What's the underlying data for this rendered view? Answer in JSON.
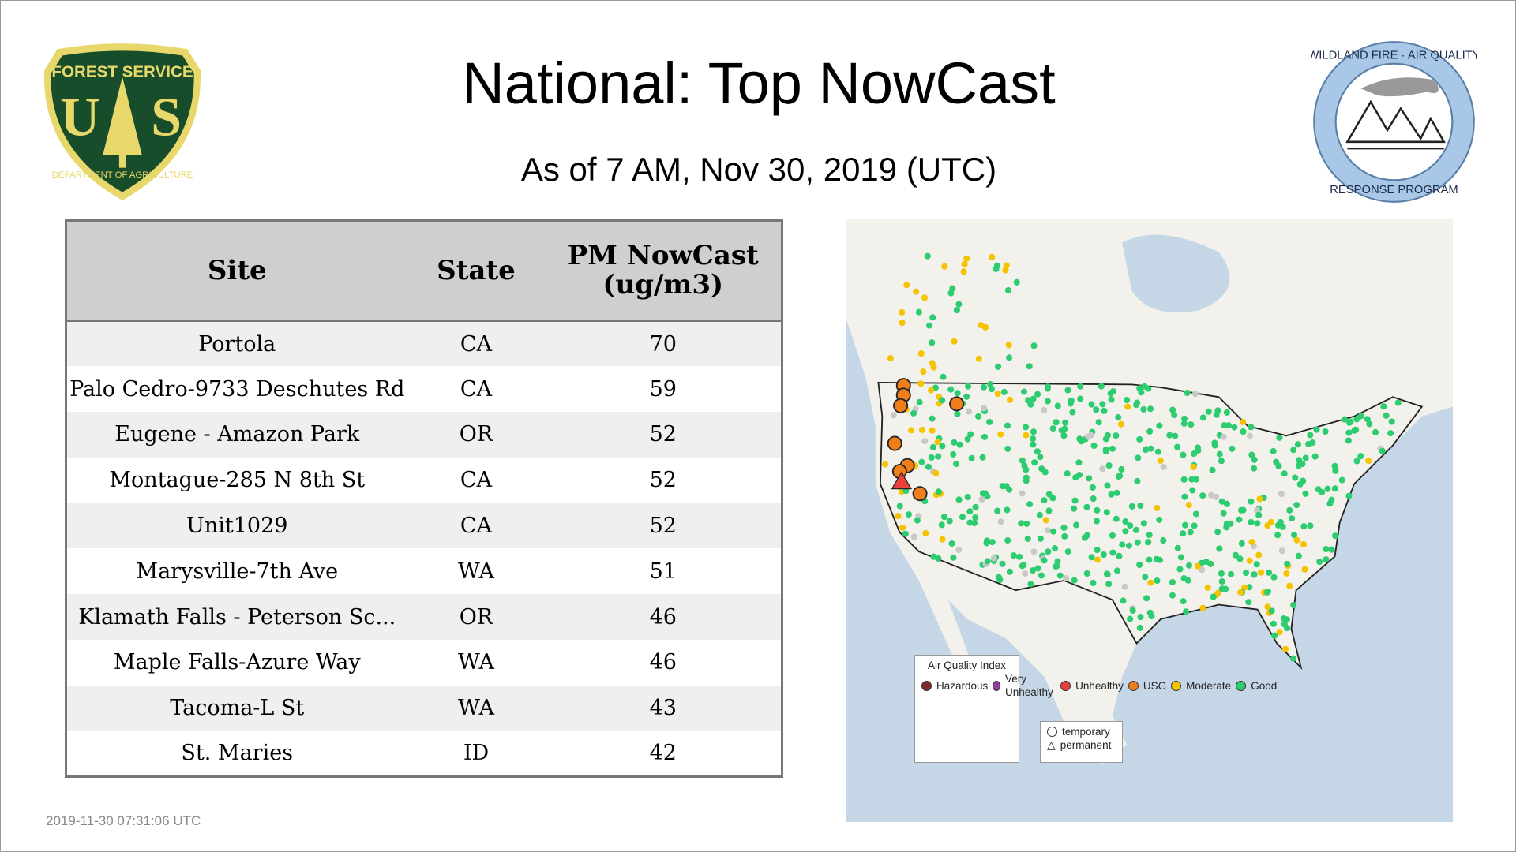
{
  "header": {
    "title": "National: Top NowCast",
    "subtitle": "As of  7 AM, Nov 30, 2019 (UTC)"
  },
  "logos": {
    "left": "FOREST SERVICE U S DEPARTMENT OF AGRICULTURE",
    "right": "WILDLAND FIRE AIR QUALITY RESPONSE PROGRAM"
  },
  "table": {
    "columns": [
      "Site",
      "State",
      "PM NowCast (ug/m3)"
    ],
    "rows": [
      [
        "Portola",
        "CA",
        "70"
      ],
      [
        "Palo Cedro-9733 Deschutes Rd",
        "CA",
        "59"
      ],
      [
        "Eugene - Amazon Park",
        "OR",
        "52"
      ],
      [
        "Montague-285 N 8th St",
        "CA",
        "52"
      ],
      [
        "Unit1029",
        "CA",
        "52"
      ],
      [
        "Marysville-7th Ave",
        "WA",
        "51"
      ],
      [
        "Klamath Falls - Peterson Sc...",
        "OR",
        "46"
      ],
      [
        "Maple Falls-Azure Way",
        "WA",
        "46"
      ],
      [
        "Tacoma-L St",
        "WA",
        "43"
      ],
      [
        "St. Maries",
        "ID",
        "42"
      ]
    ]
  },
  "map": {
    "legend_title": "Air Quality Index",
    "legend": [
      {
        "label": "Hazardous",
        "color": "#7e2a2a"
      },
      {
        "label": "Very Unhealthy",
        "color": "#8f3f97"
      },
      {
        "label": "Unhealthy",
        "color": "#e8413c"
      },
      {
        "label": "USG",
        "color": "#f07f1b"
      },
      {
        "label": "Moderate",
        "color": "#f5c300"
      },
      {
        "label": "Good",
        "color": "#2ecc71"
      }
    ],
    "shape_legend": [
      "temporary",
      "permanent"
    ],
    "colors": {
      "water": "#c5d6e6",
      "land": "#f3f1ec"
    }
  },
  "timestamp": "2019-11-30 07:31:06 UTC"
}
